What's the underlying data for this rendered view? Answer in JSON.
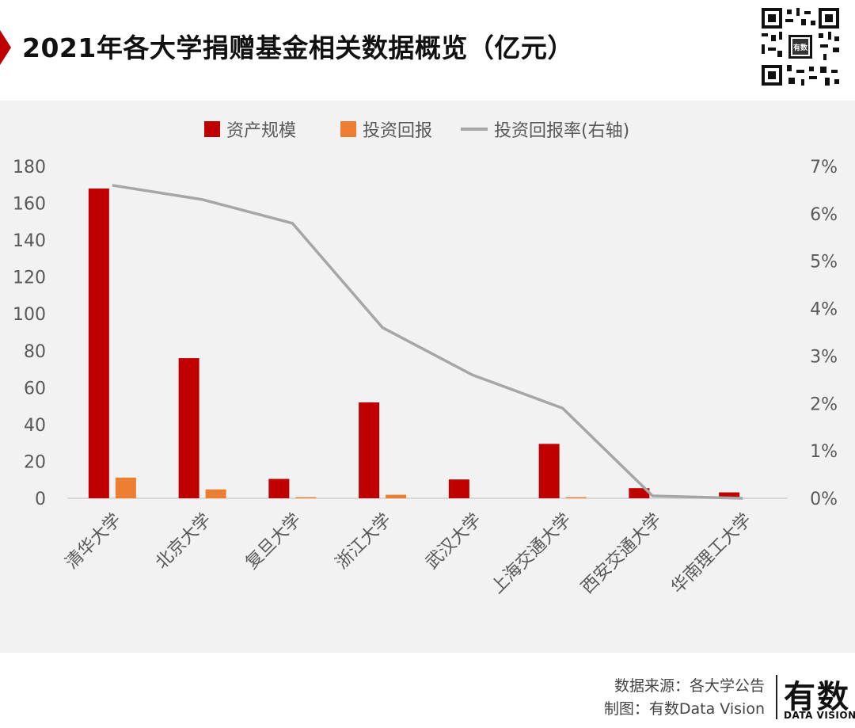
{
  "header": {
    "title": "2021年各大学捐赠基金相关数据概览（亿元）",
    "qr_badge": "有数"
  },
  "footer": {
    "source": "数据来源：各大学公告",
    "credit": "制图：有数Data Vision",
    "logo": "有数",
    "logo_sub": "DATA VISION"
  },
  "colors": {
    "asset": "#c00000",
    "return": "#ed7d31",
    "rate": "#a6a6a6",
    "accent": "#c00000",
    "plot_bg": "#f2f2f2"
  },
  "chart_data": {
    "type": "bar",
    "title": "2021年各大学捐赠基金相关数据概览（亿元）",
    "categories": [
      "清华大学",
      "北京大学",
      "复旦大学",
      "浙江大学",
      "武汉大学",
      "上海交通大学",
      "西安交通大学",
      "华南理工大学"
    ],
    "series": [
      {
        "name": "资产规模",
        "type": "bar",
        "axis": "left",
        "values": [
          168,
          76,
          10.5,
          52,
          10.2,
          29.5,
          5.5,
          3.2
        ]
      },
      {
        "name": "投资回报",
        "type": "bar",
        "axis": "left",
        "values": [
          11.2,
          4.8,
          0.6,
          1.9,
          0,
          0.6,
          0,
          0
        ]
      },
      {
        "name": "投资回报率(右轴)",
        "type": "line",
        "axis": "right",
        "values": [
          6.6,
          6.3,
          5.8,
          3.6,
          2.6,
          1.9,
          0.05,
          0.0
        ]
      }
    ],
    "y_left": {
      "min": 0,
      "max": 180,
      "ticks": [
        "0",
        "20",
        "40",
        "60",
        "80",
        "100",
        "120",
        "140",
        "160",
        "180"
      ]
    },
    "y_right": {
      "min": 0,
      "max": 7,
      "ticks": [
        "0%",
        "1%",
        "2%",
        "3%",
        "4%",
        "5%",
        "6%",
        "7%"
      ]
    },
    "legend": "top-center",
    "grid": false
  }
}
